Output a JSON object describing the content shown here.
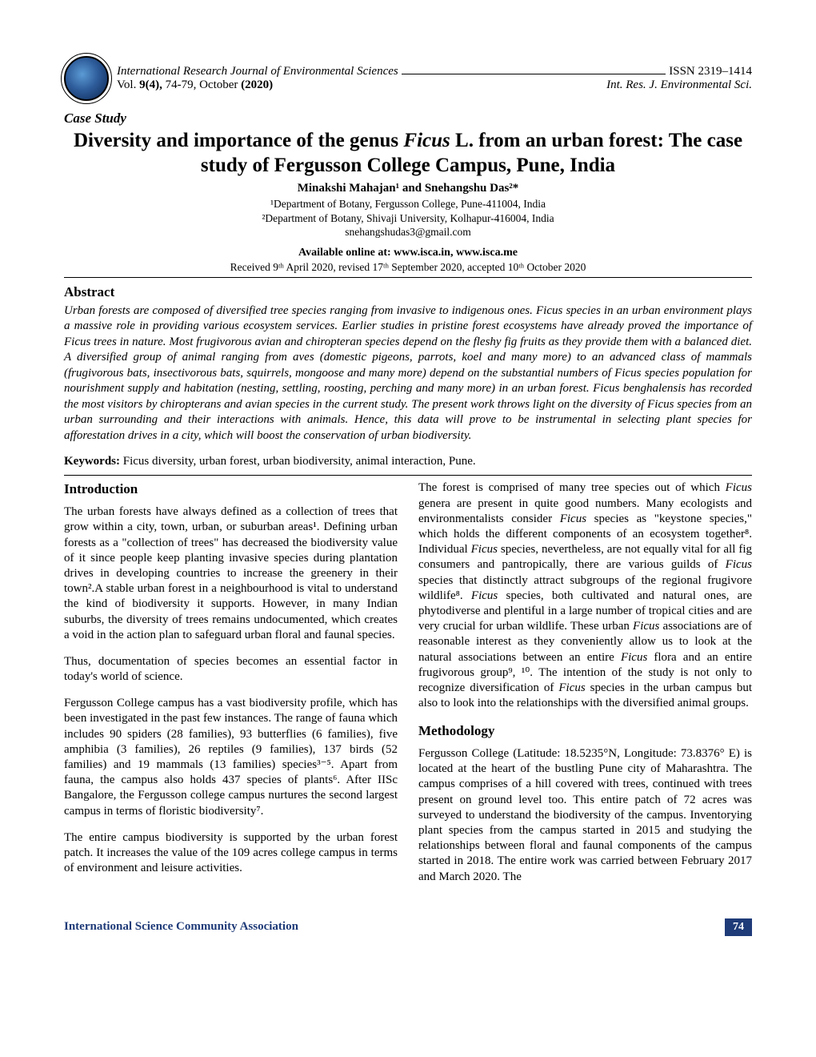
{
  "header": {
    "journal_name": "International Research Journal of Environmental Sciences",
    "issn": "ISSN 2319–1414",
    "vol_issue": "Vol. 9(4), 74-79, October (2020)",
    "journal_abbrev": "Int. Res. J. Environmental Sci."
  },
  "article": {
    "case_study_label": "Case Study",
    "title_part1": "Diversity and importance of the genus ",
    "title_italic": "Ficus",
    "title_part2": " L. from an urban forest: The case study of Fergusson College Campus, Pune, India",
    "authors": "Minakshi Mahajan¹ and Snehangshu Das²*",
    "affiliation1": "¹Department of Botany, Fergusson College, Pune-411004, India",
    "affiliation2": "²Department of Botany, Shivaji University, Kolhapur-416004, India",
    "email": "snehangshudas3@gmail.com",
    "available": "Available online at: www.isca.in, www.isca.me",
    "dates": "Received 9ᵗʰ April 2020, revised 17ᵗʰ September 2020, accepted 10ᵗʰ October 2020"
  },
  "abstract": {
    "heading": "Abstract",
    "body": "Urban forests are composed of diversified tree species ranging from invasive to indigenous ones. Ficus species in an urban environment plays a massive role in providing various ecosystem services. Earlier studies in pristine forest ecosystems have already proved the importance of Ficus trees in nature. Most frugivorous avian and chiropteran species depend on the fleshy fig fruits as they provide them with a balanced diet. A diversified group of animal ranging from aves (domestic pigeons, parrots, koel and many more) to an advanced class of mammals (frugivorous bats, insectivorous bats, squirrels, mongoose and many more) depend on the substantial numbers of Ficus species population for nourishment supply and habitation (nesting, settling, roosting, perching and many more) in an urban forest. Ficus benghalensis has recorded the most visitors by chiropterans and avian species in the current study. The present work throws light on the diversity of Ficus species from an urban surrounding and their interactions with animals. Hence, this data will prove to be instrumental in selecting plant species for afforestation drives in a city, which will boost the conservation of urban biodiversity."
  },
  "keywords": {
    "label": "Keywords:",
    "text": " Ficus diversity, urban forest, urban biodiversity, animal interaction, Pune."
  },
  "sections": {
    "intro_heading": "Introduction",
    "method_heading": "Methodology",
    "left": {
      "p1": "The urban forests have always defined as a collection of trees that grow within a city, town, urban, or suburban areas¹. Defining urban forests as a \"collection of trees\" has decreased the biodiversity value of it since people keep planting invasive species during plantation drives in developing countries to increase the greenery in their town².A stable urban forest in a neighbourhood is vital to understand the kind of biodiversity it supports. However, in many Indian suburbs, the diversity of trees remains undocumented, which creates a void in the action plan to safeguard urban floral and faunal species.",
      "p2": "Thus, documentation of species becomes an essential factor in today's world of science.",
      "p3": "Fergusson College campus has a vast biodiversity profile, which has been investigated in the past few instances. The range of fauna which includes 90 spiders (28 families), 93 butterflies (6 families), five amphibia (3 families), 26 reptiles (9 families), 137 birds (52 families) and 19 mammals (13 families) species³⁻⁵. Apart from fauna, the campus also holds 437 species of plants⁶. After IISc Bangalore, the Fergusson college campus nurtures the second largest campus in terms of floristic biodiversity⁷.",
      "p4": "The entire campus biodiversity is supported by the urban forest patch. It increases the value of the 109 acres college campus in terms of environment and leisure activities."
    },
    "right": {
      "p1a": "The forest is comprised of many tree species out of which ",
      "p1b": " genera are present in quite good numbers. Many ecologists and environmentalists consider ",
      "p1c": " species as \"keystone species,\" which holds the different components of an ecosystem together⁸. Individual ",
      "p1d": " species, nevertheless, are not equally vital for all fig consumers and pantropically, there are various guilds of ",
      "p1e": " species that distinctly attract subgroups of the regional frugivore wildlife⁸. ",
      "p1f": " species, both cultivated and natural ones, are phytodiverse and plentiful in a large number of tropical cities and are very crucial for urban wildlife. These urban ",
      "p1g": " associations are of reasonable interest as they conveniently allow us to look at the natural associations between an entire ",
      "p1h": " flora and an entire frugivorous group⁹, ¹⁰. The intention of the study is not only to recognize diversification of ",
      "p1i": " species in the urban campus but also to look into the relationships with the diversified animal groups.",
      "p2": "Fergusson College (Latitude: 18.5235°N, Longitude: 73.8376° E) is located at the heart of the bustling Pune city of Maharashtra. The campus comprises of a hill covered with trees, continued with trees present on ground level too. This entire patch of 72 acres was surveyed to understand the biodiversity of the campus. Inventorying plant species from the campus started in 2015 and studying the relationships between floral and faunal components of the campus started in 2018. The entire work was carried between February 2017 and March 2020. The"
    },
    "ficus_word": "Ficus"
  },
  "footer": {
    "association": "International Science Community Association",
    "page": "74",
    "assoc_color": "#1f3b78",
    "page_bg": "#1f3b78",
    "page_fg": "#ffffff"
  },
  "colors": {
    "text": "#000000",
    "background": "#ffffff",
    "rule": "#000000"
  },
  "typography": {
    "base_font": "Times New Roman",
    "title_size_pt": 19,
    "heading_size_pt": 13,
    "body_size_pt": 11
  }
}
